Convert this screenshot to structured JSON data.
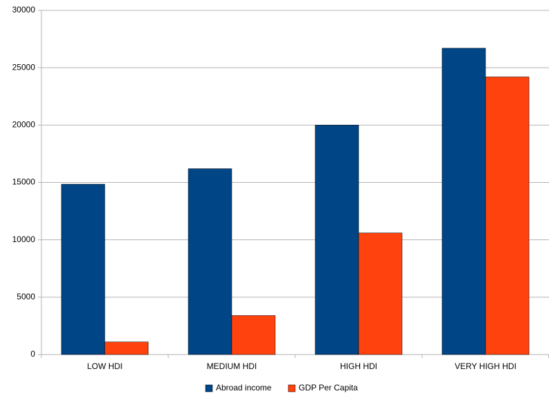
{
  "chart_data": {
    "type": "bar",
    "categories": [
      "LOW HDI",
      "MEDIUM HDI",
      "HIGH HDI",
      "VERY HIGH HDI"
    ],
    "series": [
      {
        "name": "Abroad income",
        "color": "#004586",
        "values": [
          14850,
          16200,
          20000,
          26700
        ]
      },
      {
        "name": "GDP Per Capita",
        "color": "#ff420e",
        "values": [
          1100,
          3400,
          10600,
          24200
        ]
      }
    ],
    "ylim": [
      0,
      30000
    ],
    "yticks": [
      0,
      5000,
      10000,
      15000,
      20000,
      25000,
      30000
    ],
    "grid": true,
    "legend": "bottom"
  }
}
